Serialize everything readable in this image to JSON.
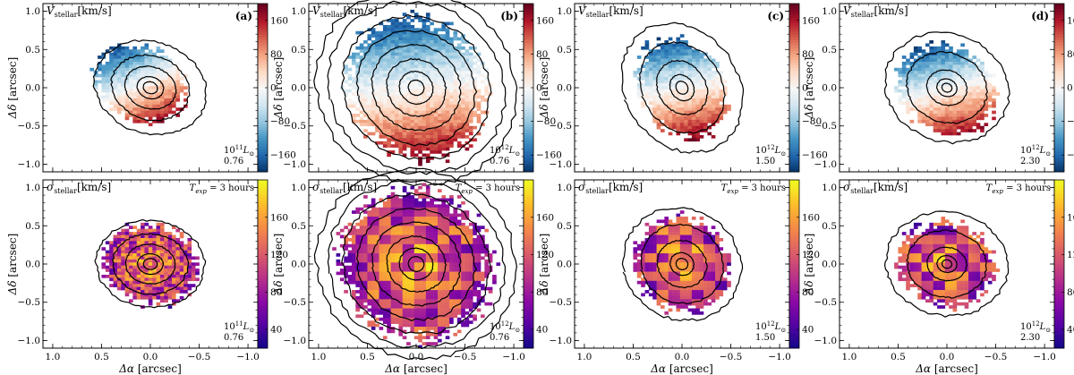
{
  "chart_data": [
    {
      "type": "heatmap",
      "panels": [
        {
          "id": "a",
          "letter": "(a)",
          "lum_base": "10",
          "lum_exp": "11",
          "z": "0.76",
          "vel": {
            "rx": 0.45,
            "ry": 0.55,
            "rot": -30,
            "dx": 0.1,
            "dy": 0.05
          },
          "sig": {
            "rx": 0.5,
            "ry": 0.55,
            "rot": -25
          },
          "contours": [
            0.07,
            0.13,
            0.25,
            0.38,
            0.55
          ]
        },
        {
          "id": "b",
          "letter": "(b)",
          "lum_base": "10",
          "lum_exp": "12",
          "z": "0.76",
          "vel": {
            "rx": 0.72,
            "ry": 0.95,
            "rot": -10,
            "dx": 0,
            "dy": 0
          },
          "sig": {
            "rx": 0.78,
            "ry": 1.0,
            "rot": -8
          },
          "contours": [
            0.08,
            0.17,
            0.3,
            0.45,
            0.6,
            0.75,
            0.9,
            1.02
          ]
        },
        {
          "id": "c",
          "letter": "(c)",
          "lum_base": "10",
          "lum_exp": "12",
          "z": "1.50",
          "vel": {
            "rx": 0.45,
            "ry": 0.68,
            "rot": -15,
            "dx": 0,
            "dy": 0
          },
          "sig": {
            "rx": 0.5,
            "ry": 0.65,
            "rot": -10
          },
          "contours": [
            0.06,
            0.12,
            0.25,
            0.42,
            0.6
          ]
        },
        {
          "id": "d",
          "letter": "(d)",
          "lum_base": "10",
          "lum_exp": "12",
          "z": "2.30",
          "vel": {
            "rx": 0.5,
            "ry": 0.62,
            "rot": -20,
            "dx": 0,
            "dy": -0.02
          },
          "sig": {
            "rx": 0.5,
            "ry": 0.58,
            "rot": -15
          },
          "contours": [
            0.05,
            0.1,
            0.2,
            0.4,
            0.62
          ]
        }
      ],
      "rows": [
        {
          "quantity": "V",
          "sub": "stellar",
          "unit": "[km/s]",
          "colorbar_ticks": [
            160,
            80,
            0,
            -80,
            -160
          ],
          "clim": [
            -200,
            200
          ],
          "colormap": "RdBu"
        },
        {
          "quantity": "σ",
          "sub": "stellar",
          "unit": "[km/s]",
          "colorbar_ticks": [
            160,
            120,
            80,
            40
          ],
          "clim": [
            20,
            200
          ],
          "colormap": "plasma",
          "annotation_T": "T",
          "annotation_T_sub": "exp",
          "annotation_value": " = 3 hours"
        }
      ],
      "xlabel_main": "Δα",
      "xlabel_unit": "[arcsec]",
      "ylabel_main": "Δδ",
      "ylabel_unit": "[arcsec]",
      "xticks": [
        1.0,
        0.5,
        0.0,
        -0.5,
        -1.0
      ],
      "xtick_labels": [
        "1.0",
        "0.5",
        "0.0",
        "−0.5",
        "−1.0"
      ],
      "yticks": [
        1.0,
        0.5,
        0.0,
        -0.5,
        -1.0
      ],
      "ytick_labels": [
        "1.0",
        "0.5",
        "0.0",
        "−0.5",
        "−1.0"
      ],
      "xlim": [
        1.1,
        -1.1
      ],
      "ylim": [
        -1.1,
        1.1
      ]
    }
  ]
}
